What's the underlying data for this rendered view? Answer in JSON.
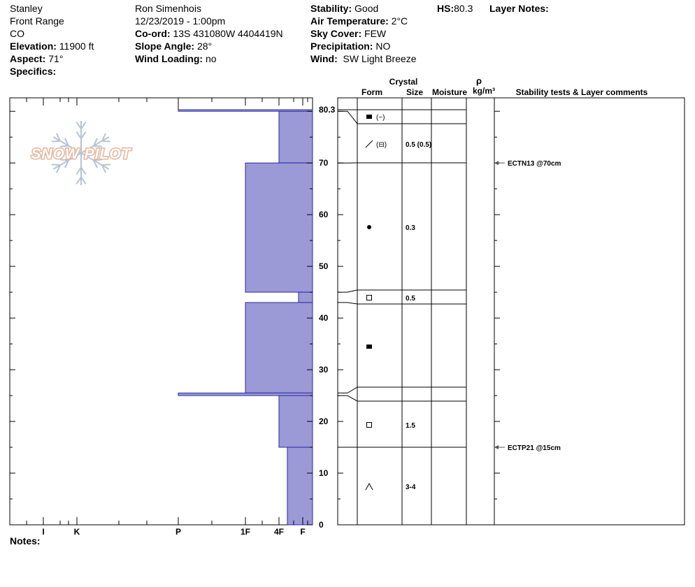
{
  "header": {
    "col1": {
      "location": "Stanley",
      "range": "Front Range",
      "state": "CO",
      "elevation_label": "Elevation:",
      "elevation_value": "11900 ft",
      "aspect_label": "Aspect:",
      "aspect_value": "71°",
      "specifics_label": "Specifics:"
    },
    "col2": {
      "observer": "Ron Simenhois",
      "datetime": "12/23/2019 - 1:00pm",
      "coord_label": "Co-ord:",
      "coord_value": "13S 431080W 4404419N",
      "slope_label": "Slope Angle:",
      "slope_value": "28°",
      "wind_loading_label": "Wind Loading:",
      "wind_loading_value": "no"
    },
    "col3": {
      "stability_label": "Stability:",
      "stability_value": "Good",
      "air_temp_label": "Air Temperature:",
      "air_temp_value": "2°C",
      "sky_label": "Sky Cover:",
      "sky_value": "FEW",
      "precip_label": "Precipitation:",
      "precip_value": "NO",
      "wind_label": "Wind:",
      "wind_value": "SW Light Breeze"
    },
    "hs_label": "HS:",
    "hs_value": "80.3",
    "layer_notes_label": "Layer Notes:"
  },
  "logo_text": "SNOW PILOT",
  "notes_label": "Notes:",
  "columns": {
    "crystal": "Crystal",
    "form": "Form",
    "size": "Size",
    "moisture": "Moisture",
    "rho": "ρ",
    "density_unit": "kg/m³",
    "stability": "Stability tests & Layer comments"
  },
  "colors": {
    "hardness_fill": "#9b99d6",
    "hardness_stroke": "#2a2aa6",
    "line": "#000000",
    "logo": "#e8b49a",
    "snowflake": "#b6c4d6"
  },
  "chart_data": {
    "type": "bar",
    "orientation": "horizontal",
    "y_axis": {
      "range": [
        0,
        80.3
      ],
      "ticks": [
        "0",
        "10",
        "20",
        "30",
        "40",
        "50",
        "60",
        "70",
        "80.3"
      ]
    },
    "x_axis": {
      "ticks": [
        "I",
        "K",
        "P",
        "1F",
        "4F",
        "F"
      ]
    },
    "hardness_layers": [
      {
        "bottom": 80,
        "top": 80.3,
        "hardness": "P"
      },
      {
        "bottom": 70,
        "top": 80,
        "hardness": "4F"
      },
      {
        "bottom": 45,
        "top": 70,
        "hardness": "1F"
      },
      {
        "bottom": 43,
        "top": 45,
        "hardness": "F+"
      },
      {
        "bottom": 25.5,
        "top": 43,
        "hardness": "1F"
      },
      {
        "bottom": 25,
        "top": 25.5,
        "hardness": "P"
      },
      {
        "bottom": 15,
        "top": 25,
        "hardness": "4F"
      },
      {
        "bottom": 0,
        "top": 15,
        "hardness": "4F-"
      }
    ],
    "layer_boundaries": [
      80.3,
      80,
      70,
      45,
      43,
      25.5,
      25,
      15,
      0
    ],
    "grains": [
      {
        "depth": 77.5,
        "form": "rounded-faceted",
        "size": ""
      },
      {
        "depth": 73.5,
        "form": "decomposing-facets",
        "size": "0.5 (0.5)"
      },
      {
        "depth": 57.5,
        "form": "graupel",
        "size": "0.3"
      },
      {
        "depth": 44,
        "form": "faceted",
        "size": "0.5"
      },
      {
        "depth": 34.5,
        "form": "rounded-faceted",
        "size": ""
      },
      {
        "depth": 19.5,
        "form": "faceted",
        "size": "1.5"
      },
      {
        "depth": 7.5,
        "form": "depth-hoar",
        "size": "3-4"
      }
    ],
    "stability_tests": [
      {
        "depth": 70,
        "label": "ECTN13 @70cm"
      },
      {
        "depth": 15,
        "label": "ECTP21 @15cm"
      }
    ]
  }
}
